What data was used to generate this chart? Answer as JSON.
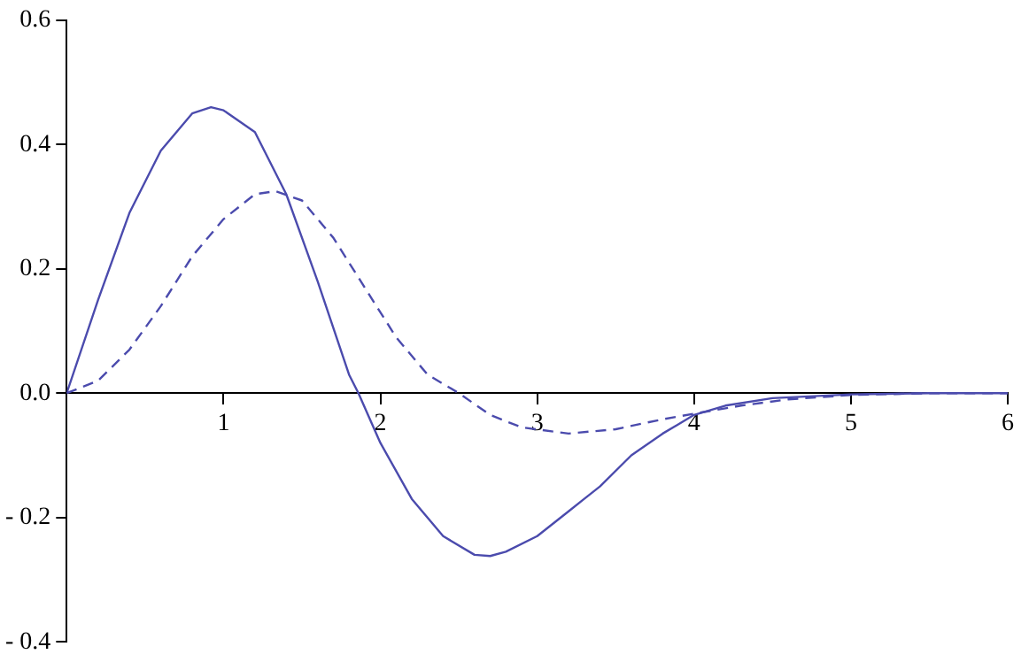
{
  "chart_data": {
    "type": "line",
    "xlim": [
      0,
      6
    ],
    "ylim": [
      -0.4,
      0.6
    ],
    "xticks": [
      1,
      2,
      3,
      4,
      5,
      6
    ],
    "yticks": [
      {
        "value": -0.4,
        "label": "- 0.4"
      },
      {
        "value": -0.2,
        "label": "- 0.2"
      },
      {
        "value": 0,
        "label": "0.0"
      },
      0.2,
      0.4,
      0.6
    ],
    "grid": false,
    "legend": false,
    "marker": "none",
    "series": [
      {
        "color": "#4b4bad",
        "line_style": "solid",
        "x": [
          0,
          0.2,
          0.4,
          0.6,
          0.8,
          0.92,
          1.0,
          1.2,
          1.4,
          1.6,
          1.8,
          1.86,
          2.0,
          2.2,
          2.4,
          2.6,
          2.7,
          2.8,
          3.0,
          3.2,
          3.3,
          3.4,
          3.6,
          3.8,
          4.0,
          4.2,
          4.5,
          5.0,
          5.5,
          6.0
        ],
        "values": [
          0,
          0.15,
          0.29,
          0.39,
          0.45,
          0.46,
          0.455,
          0.42,
          0.32,
          0.18,
          0.03,
          0,
          -0.08,
          -0.17,
          -0.23,
          -0.26,
          -0.262,
          -0.255,
          -0.23,
          -0.19,
          -0.17,
          -0.15,
          -0.1,
          -0.065,
          -0.035,
          -0.02,
          -0.008,
          -0.002,
          0,
          0
        ]
      },
      {
        "color": "#4b4bad",
        "line_style": "dashed",
        "x": [
          0,
          0.2,
          0.4,
          0.6,
          0.8,
          1.0,
          1.2,
          1.33,
          1.5,
          1.7,
          1.9,
          2.1,
          2.3,
          2.5,
          2.7,
          2.9,
          3.2,
          3.5,
          3.8,
          4.0,
          4.3,
          4.6,
          5.0,
          5.5,
          6.0
        ],
        "values": [
          0,
          0.02,
          0.07,
          0.14,
          0.22,
          0.28,
          0.32,
          0.325,
          0.31,
          0.25,
          0.17,
          0.09,
          0.03,
          0,
          -0.035,
          -0.055,
          -0.065,
          -0.058,
          -0.042,
          -0.033,
          -0.02,
          -0.01,
          -0.003,
          0,
          0
        ]
      }
    ]
  }
}
